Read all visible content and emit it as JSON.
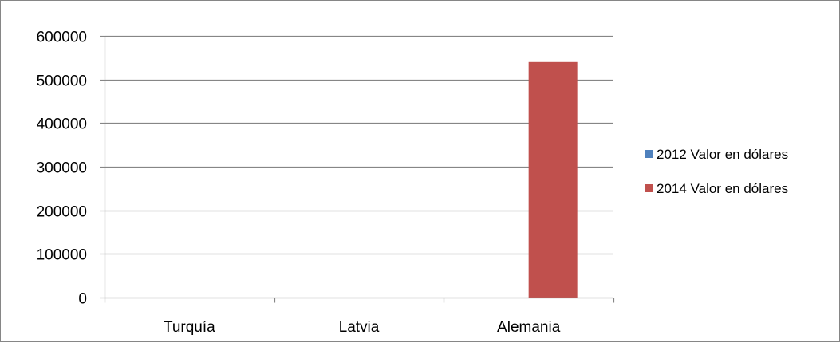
{
  "chart_data": {
    "type": "bar",
    "title": "",
    "xlabel": "",
    "ylabel": "",
    "categories": [
      "Turquía",
      "Latvia",
      "Alemania"
    ],
    "series": [
      {
        "name": "2012 Valor en dólares",
        "values": [
          0,
          0,
          0
        ],
        "color": "#4f81bd"
      },
      {
        "name": "2014 Valor en dólares",
        "values": [
          0,
          0,
          540000
        ],
        "color": "#c0504d"
      }
    ],
    "ylim": [
      0,
      600000
    ],
    "yticks": [
      "0",
      "100000",
      "200000",
      "300000",
      "400000",
      "500000",
      "600000"
    ],
    "grid": true,
    "legend_position": "right"
  }
}
